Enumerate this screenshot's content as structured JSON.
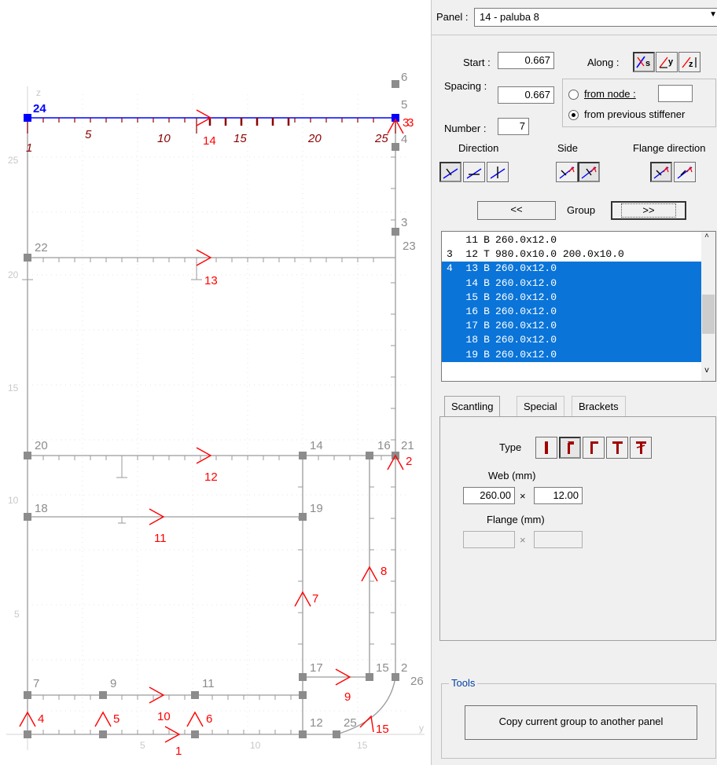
{
  "colors": {
    "blue": "#0000ff",
    "red": "#ff0000",
    "dark_red": "#8b0000",
    "gray": "#9a9a9a",
    "node_gray": "#8c8c8c",
    "axis": "#d0d0d0",
    "select": "#0a74d8"
  },
  "panel_select": {
    "label": "Panel :",
    "value": "14 - paluba 8"
  },
  "start": {
    "label": "Start :",
    "value": "0.667"
  },
  "spacing": {
    "label": "Spacing :",
    "value": "0.667"
  },
  "number": {
    "label": "Number :",
    "value": "7"
  },
  "along": {
    "label": "Along :",
    "buttons": [
      "s",
      "y",
      "z"
    ]
  },
  "from_node": {
    "label": "from node :",
    "value": ""
  },
  "from_previous": {
    "label": "from previous stiffener"
  },
  "direction_label": "Direction",
  "side_label": "Side",
  "flange_direction_label": "Flange direction",
  "nav": {
    "prev": "<<",
    "group": "Group",
    "next": ">>"
  },
  "stiffeners": [
    {
      "group": "",
      "no": "11",
      "type": "B",
      "dims": "260.0x12.0",
      "selected": false
    },
    {
      "group": "3",
      "no": "12",
      "type": "T",
      "dims": "980.0x10.0 200.0x10.0",
      "selected": false
    },
    {
      "group": "4",
      "no": "13",
      "type": "B",
      "dims": "260.0x12.0",
      "selected": true
    },
    {
      "group": "",
      "no": "14",
      "type": "B",
      "dims": "260.0x12.0",
      "selected": true
    },
    {
      "group": "",
      "no": "15",
      "type": "B",
      "dims": "260.0x12.0",
      "selected": true
    },
    {
      "group": "",
      "no": "16",
      "type": "B",
      "dims": "260.0x12.0",
      "selected": true
    },
    {
      "group": "",
      "no": "17",
      "type": "B",
      "dims": "260.0x12.0",
      "selected": true
    },
    {
      "group": "",
      "no": "18",
      "type": "B",
      "dims": "260.0x12.0",
      "selected": true
    },
    {
      "group": "",
      "no": "19",
      "type": "B",
      "dims": "260.0x12.0",
      "selected": true
    }
  ],
  "tabs": [
    "Scantling",
    "Special",
    "Brackets"
  ],
  "type_label": "Type",
  "web": {
    "label": "Web (mm)",
    "height": "260.00",
    "thickness": "12.00"
  },
  "flange": {
    "label": "Flange (mm)",
    "width": "",
    "thickness": ""
  },
  "times": "×",
  "tools": {
    "label": "Tools",
    "copy_button": "Copy current group to another panel"
  },
  "canvas": {
    "axis_labels": [
      {
        "text": "z"
      },
      {
        "text": "y"
      }
    ],
    "y_ticks": [
      "5",
      "10",
      "15"
    ],
    "z_ticks": [
      "5",
      "10",
      "15",
      "20",
      "25"
    ],
    "node_labels": [
      "24",
      "6",
      "5",
      "3",
      "4",
      "22",
      "3",
      "23",
      "20",
      "14",
      "16",
      "21",
      "18",
      "19",
      "17",
      "15",
      "2",
      "26",
      "7",
      "9",
      "11",
      "12",
      "25"
    ],
    "panel_labels": [
      "1",
      "2",
      "3",
      "4",
      "5",
      "6",
      "7",
      "8",
      "9",
      "10",
      "11",
      "12",
      "13",
      "14",
      "15",
      "25"
    ],
    "stiffener_labels": [
      "1",
      "5",
      "10",
      "14",
      "15",
      "20",
      "25"
    ]
  }
}
